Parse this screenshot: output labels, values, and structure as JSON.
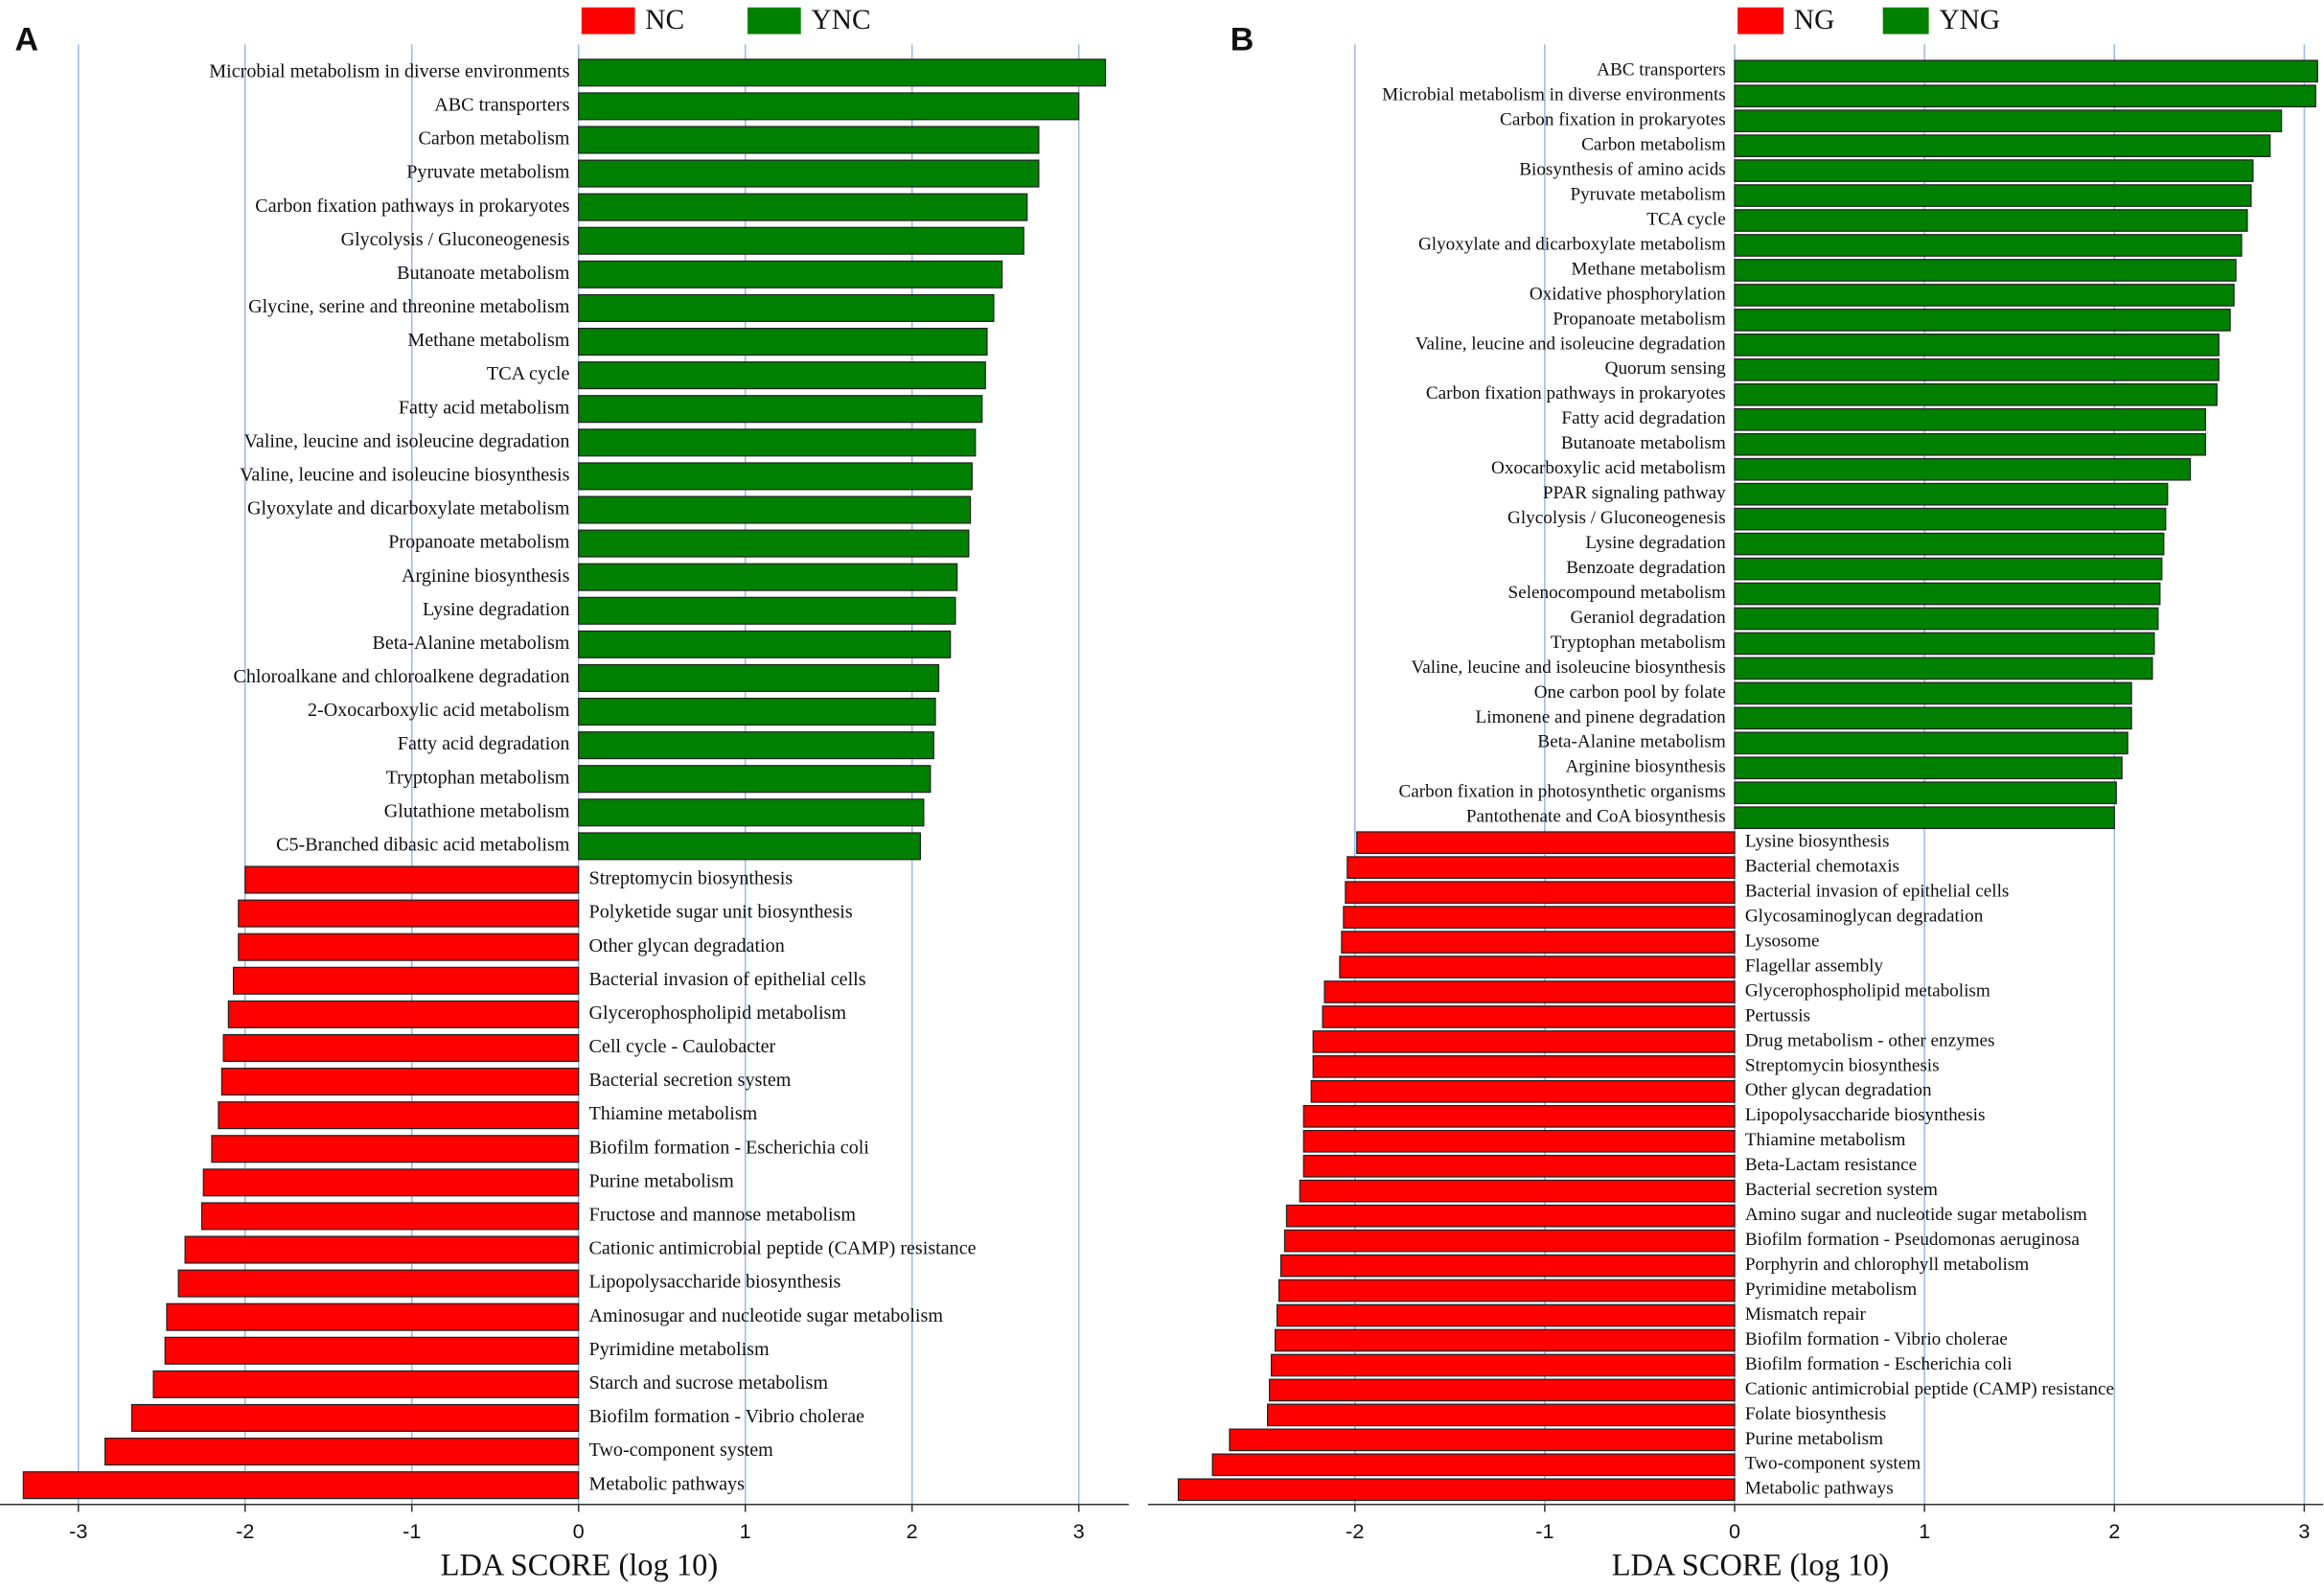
{
  "chart_data": [
    {
      "type": "bar",
      "orientation": "horizontal",
      "panel_label": "A",
      "xlabel": "LDA SCORE (log 10)",
      "xlim": [
        -3.47,
        3.3
      ],
      "xticks": [
        -3,
        -2,
        -1,
        0,
        1,
        2,
        3
      ],
      "grid": true,
      "legend": "top",
      "categories": [
        "Microbial metabolism in diverse environments",
        "ABC transporters",
        "Carbon metabolism",
        "Pyruvate metabolism",
        "Carbon fixation pathways in prokaryotes",
        "Glycolysis / Gluconeogenesis",
        "Butanoate metabolism",
        "Glycine, serine and threonine metabolism",
        "Methane metabolism",
        "TCA cycle",
        "Fatty acid metabolism",
        "Valine, leucine and isoleucine degradation",
        "Valine, leucine and isoleucine biosynthesis",
        "Glyoxylate and dicarboxylate metabolism",
        "Propanoate metabolism",
        "Arginine biosynthesis",
        "Lysine degradation",
        "Beta-Alanine metabolism",
        "Chloroalkane and chloroalkene degradation",
        "2-Oxocarboxylic acid metabolism",
        "Fatty acid degradation",
        "Tryptophan metabolism",
        "Glutathione metabolism",
        "C5-Branched dibasic acid metabolism",
        "Streptomycin biosynthesis",
        "Polyketide sugar unit biosynthesis",
        "Other glycan degradation",
        "Bacterial invasion of epithelial cells",
        "Glycerophospholipid metabolism",
        "Cell cycle - Caulobacter",
        "Bacterial secretion system",
        "Thiamine metabolism",
        "Biofilm formation - Escherichia coli",
        "Purine metabolism",
        "Fructose and mannose metabolism",
        "Cationic antimicrobial peptide (CAMP) resistance",
        "Lipopolysaccharide biosynthesis",
        "Aminosugar and nucleotide sugar metabolism",
        "Pyrimidine metabolism",
        "Starch and sucrose metabolism",
        "Biofilm formation - Vibrio cholerae",
        "Two-component system",
        "Metabolic pathways"
      ],
      "series": [
        {
          "name": "NC",
          "color": "#ff0000",
          "values": [
            null,
            null,
            null,
            null,
            null,
            null,
            null,
            null,
            null,
            null,
            null,
            null,
            null,
            null,
            null,
            null,
            null,
            null,
            null,
            null,
            null,
            null,
            null,
            null,
            -2.0,
            -2.04,
            -2.04,
            -2.07,
            -2.1,
            -2.13,
            -2.14,
            -2.16,
            -2.2,
            -2.25,
            -2.26,
            -2.36,
            -2.4,
            -2.47,
            -2.48,
            -2.55,
            -2.68,
            -2.84,
            -3.33
          ]
        },
        {
          "name": "YNC",
          "color": "#008000",
          "values": [
            3.16,
            3.0,
            2.76,
            2.76,
            2.69,
            2.67,
            2.54,
            2.49,
            2.45,
            2.44,
            2.42,
            2.38,
            2.36,
            2.35,
            2.34,
            2.27,
            2.26,
            2.23,
            2.16,
            2.14,
            2.13,
            2.11,
            2.07,
            2.05,
            null,
            null,
            null,
            null,
            null,
            null,
            null,
            null,
            null,
            null,
            null,
            null,
            null,
            null,
            null,
            null,
            null,
            null,
            null
          ]
        }
      ]
    },
    {
      "type": "bar",
      "orientation": "horizontal",
      "panel_label": "B",
      "xlabel": "LDA SCORE (log 10)",
      "xlim": [
        -3.09,
        3.1
      ],
      "xticks": [
        -2,
        -1,
        0,
        1,
        2,
        3
      ],
      "grid": true,
      "legend": "top",
      "categories": [
        "ABC transporters",
        "Microbial metabolism in diverse environments",
        "Carbon fixation in prokaryotes",
        "Carbon metabolism",
        "Biosynthesis of amino acids",
        "Pyruvate metabolism",
        "TCA cycle",
        "Glyoxylate and dicarboxylate metabolism",
        "Methane metabolism",
        "Oxidative phosphorylation",
        "Propanoate metabolism",
        "Valine, leucine and isoleucine degradation",
        "Quorum sensing",
        "Carbon fixation pathways in prokaryotes",
        "Fatty acid degradation",
        "Butanoate metabolism",
        "Oxocarboxylic acid metabolism",
        "PPAR signaling pathway",
        "Glycolysis / Gluconeogenesis",
        "Lysine degradation",
        "Benzoate degradation",
        "Selenocompound metabolism",
        "Geraniol degradation",
        "Tryptophan metabolism",
        "Valine, leucine and isoleucine biosynthesis",
        "One carbon pool by folate",
        "Limonene and pinene degradation",
        "Beta-Alanine metabolism",
        "Arginine biosynthesis",
        "Carbon fixation in photosynthetic organisms",
        "Pantothenate and CoA biosynthesis",
        "Lysine biosynthesis",
        "Bacterial chemotaxis",
        "Bacterial invasion of epithelial cells",
        "Glycosaminoglycan degradation",
        "Lysosome",
        "Flagellar assembly",
        "Glycerophospholipid metabolism",
        "Pertussis",
        "Drug metabolism - other enzymes",
        "Streptomycin biosynthesis",
        "Other glycan degradation",
        "Lipopolysaccharide biosynthesis",
        "Thiamine metabolism",
        "Beta-Lactam resistance",
        "Bacterial secretion system",
        "Amino sugar and nucleotide sugar metabolism",
        "Biofilm formation - Pseudomonas aeruginosa",
        "Porphyrin and chlorophyll metabolism",
        "Pyrimidine metabolism",
        "Mismatch repair",
        "Biofilm formation - Vibrio cholerae",
        "Biofilm formation - Escherichia coli",
        "Cationic antimicrobial peptide (CAMP) resistance",
        "Folate biosynthesis",
        "Purine metabolism",
        "Two-component system",
        "Metabolic pathways"
      ],
      "series": [
        {
          "name": "NG",
          "color": "#ff0000",
          "values": [
            null,
            null,
            null,
            null,
            null,
            null,
            null,
            null,
            null,
            null,
            null,
            null,
            null,
            null,
            null,
            null,
            null,
            null,
            null,
            null,
            null,
            null,
            null,
            null,
            null,
            null,
            null,
            null,
            null,
            null,
            null,
            -1.99,
            -2.04,
            -2.05,
            -2.06,
            -2.07,
            -2.08,
            -2.16,
            -2.17,
            -2.22,
            -2.22,
            -2.23,
            -2.27,
            -2.27,
            -2.27,
            -2.29,
            -2.36,
            -2.37,
            -2.39,
            -2.4,
            -2.41,
            -2.42,
            -2.44,
            -2.45,
            -2.46,
            -2.66,
            -2.75,
            -2.93
          ]
        },
        {
          "name": "YNG",
          "color": "#008000",
          "values": [
            3.07,
            3.06,
            2.88,
            2.82,
            2.73,
            2.72,
            2.7,
            2.67,
            2.64,
            2.63,
            2.61,
            2.55,
            2.55,
            2.54,
            2.48,
            2.48,
            2.4,
            2.28,
            2.27,
            2.26,
            2.25,
            2.24,
            2.23,
            2.21,
            2.2,
            2.09,
            2.09,
            2.07,
            2.04,
            2.01,
            2.0,
            null,
            null,
            null,
            null,
            null,
            null,
            null,
            null,
            null,
            null,
            null,
            null,
            null,
            null,
            null,
            null,
            null,
            null,
            null,
            null,
            null,
            null,
            null,
            null,
            null,
            null,
            null
          ]
        }
      ]
    }
  ]
}
